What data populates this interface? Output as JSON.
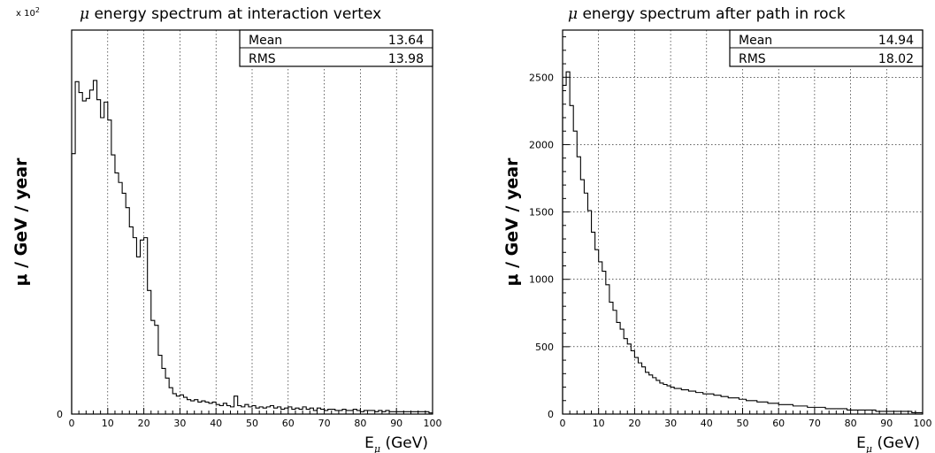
{
  "chart_data": [
    {
      "type": "histogram",
      "title": "energy spectrum at interaction vertex",
      "title_symbol": "μ",
      "ylabel": "μ / GeV / year",
      "xlabel_main": "E",
      "xlabel_sub": "μ",
      "xlabel_unit": " (GeV)",
      "y_multiplier_prefix": "x 10",
      "y_multiplier_exp": "2",
      "xlim": [
        0,
        100
      ],
      "ylim": [
        0,
        3200
      ],
      "grid": true,
      "x_ticks": [
        "0",
        "10",
        "20",
        "30",
        "40",
        "50",
        "60",
        "70",
        "80",
        "90",
        "100"
      ],
      "y_ticks": [
        "0",
        "500",
        "1000",
        "1500",
        "2000",
        "2500",
        "3000"
      ],
      "stats": {
        "mean_label": "Mean",
        "mean_value": "13.64",
        "rms_label": "RMS",
        "rms_value": "13.98"
      },
      "bin_width": 1,
      "values": [
        2170,
        2770,
        2680,
        2610,
        2630,
        2700,
        2780,
        2620,
        2470,
        2600,
        2450,
        2160,
        2010,
        1930,
        1840,
        1720,
        1560,
        1470,
        1310,
        1450,
        1470,
        1030,
        780,
        740,
        490,
        380,
        300,
        220,
        170,
        150,
        160,
        140,
        120,
        110,
        120,
        100,
        110,
        100,
        90,
        100,
        80,
        70,
        90,
        70,
        60,
        150,
        70,
        60,
        80,
        60,
        70,
        50,
        60,
        50,
        60,
        70,
        50,
        60,
        40,
        50,
        60,
        40,
        50,
        40,
        60,
        40,
        50,
        30,
        50,
        40,
        30,
        40,
        40,
        30,
        30,
        40,
        30,
        30,
        40,
        30,
        20,
        30,
        30,
        30,
        20,
        30,
        20,
        30,
        20,
        20,
        20,
        20,
        20,
        20,
        20,
        20,
        20,
        20,
        20,
        10
      ]
    },
    {
      "type": "histogram",
      "title": "energy spectrum after path in rock",
      "title_symbol": "μ",
      "ylabel": "μ / GeV / year",
      "xlabel_main": "E",
      "xlabel_sub": "μ",
      "xlabel_unit": " (GeV)",
      "xlim": [
        0,
        100
      ],
      "ylim": [
        0,
        2850
      ],
      "grid": true,
      "x_ticks": [
        "0",
        "10",
        "20",
        "30",
        "40",
        "50",
        "60",
        "70",
        "80",
        "90",
        "100"
      ],
      "y_ticks": [
        "0",
        "500",
        "1000",
        "1500",
        "2000",
        "2500"
      ],
      "stats": {
        "mean_label": "Mean",
        "mean_value": "14.94",
        "rms_label": "RMS",
        "rms_value": "18.02"
      },
      "bin_width": 1,
      "values": [
        2440,
        2540,
        2290,
        2100,
        1910,
        1740,
        1640,
        1510,
        1350,
        1220,
        1130,
        1060,
        960,
        830,
        770,
        680,
        630,
        560,
        520,
        470,
        420,
        380,
        350,
        310,
        290,
        270,
        250,
        230,
        220,
        210,
        200,
        190,
        190,
        180,
        180,
        170,
        170,
        160,
        160,
        150,
        150,
        150,
        140,
        140,
        130,
        130,
        120,
        120,
        120,
        110,
        110,
        100,
        100,
        100,
        90,
        90,
        90,
        80,
        80,
        80,
        70,
        70,
        70,
        70,
        60,
        60,
        60,
        60,
        50,
        50,
        50,
        50,
        50,
        40,
        40,
        40,
        40,
        40,
        40,
        30,
        30,
        30,
        30,
        30,
        30,
        30,
        30,
        20,
        20,
        20,
        20,
        20,
        20,
        20,
        20,
        20,
        20,
        10,
        10,
        10
      ]
    }
  ]
}
